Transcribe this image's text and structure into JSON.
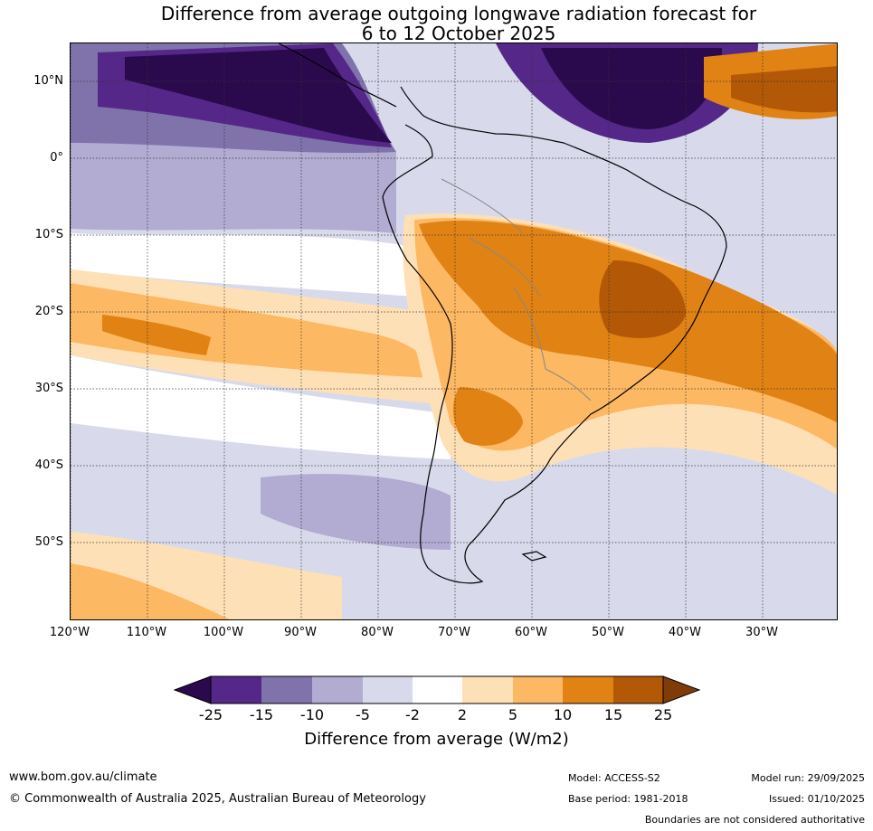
{
  "title": {
    "line1": "Difference from average outgoing longwave radiation forecast for",
    "line2": "6 to 12 October 2025"
  },
  "map": {
    "lat_labels": [
      "10°N",
      "0°",
      "10°S",
      "20°S",
      "30°S",
      "40°S",
      "50°S"
    ],
    "lon_labels": [
      "120°W",
      "110°W",
      "100°W",
      "90°W",
      "80°W",
      "70°W",
      "60°W",
      "50°W",
      "40°W",
      "30°W"
    ]
  },
  "colorbar": {
    "ticks": [
      "-25",
      "-15",
      "-10",
      "-5",
      "-2",
      "2",
      "5",
      "10",
      "15",
      "25"
    ],
    "colors": {
      "below_-25": "#2a0a4d",
      "-25_-15": "#542788",
      "-15_-10": "#8073ac",
      "-10_-5": "#b2abd2",
      "-5_-2": "#d8daeb",
      "-2_2": "#ffffff",
      "2_5": "#fee0b6",
      "5_10": "#fdb863",
      "10_15": "#e08214",
      "15_25": "#b35806",
      "above_25": "#7f3b08"
    },
    "label": "Difference from average (W/m2)"
  },
  "footer": {
    "url": "www.bom.gov.au/climate",
    "copyright": "© Commonwealth of Australia 2025, Australian Bureau of Meteorology",
    "model": "Model: ACCESS-S2",
    "base_period": "Base period: 1981-2018",
    "model_run": "Model run: 29/09/2025",
    "issued": "Issued: 01/10/2025",
    "disclaimer": "Boundaries are not considered authoritative"
  }
}
